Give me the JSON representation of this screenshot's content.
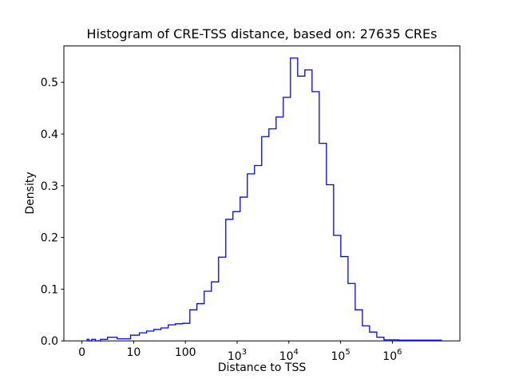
{
  "figure": {
    "title": "Histogram of CRE-TSS distance, based on: 27635 CREs",
    "xlabel": "Distance to TSS",
    "ylabel": "Density",
    "cre_count": 27635,
    "background_color": "#ffffff",
    "line_color": "#0000ff",
    "axis_color": "#000000"
  },
  "chart_data": {
    "type": "bar",
    "subtype": "step-histogram",
    "title": "Histogram of CRE-TSS distance, based on: 27635 CREs",
    "xlabel": "Distance to TSS",
    "ylabel": "Density",
    "x_scale": "symlog",
    "grid": false,
    "legend": "none",
    "line_color": "#0000ff",
    "ylim": [
      0.0,
      0.57
    ],
    "y_ticks": [
      {
        "value": 0.0,
        "label": "0.0"
      },
      {
        "value": 0.1,
        "label": "0.1"
      },
      {
        "value": 0.2,
        "label": "0.2"
      },
      {
        "value": 0.3,
        "label": "0.3"
      },
      {
        "value": 0.4,
        "label": "0.4"
      },
      {
        "value": 0.5,
        "label": "0.5"
      }
    ],
    "x_ticks": [
      {
        "value": 0,
        "label": "0"
      },
      {
        "value": 10,
        "label": "10"
      },
      {
        "value": 100,
        "label": "100"
      },
      {
        "value": 1000,
        "label": "10",
        "sup": "3"
      },
      {
        "value": 10000,
        "label": "10",
        "sup": "4"
      },
      {
        "value": 100000,
        "label": "10",
        "sup": "5"
      },
      {
        "value": 1000000,
        "label": "10",
        "sup": "6"
      }
    ],
    "bin_edges": [
      1,
      1.38,
      1.9,
      2.61,
      3.6,
      4.96,
      6.82,
      9.4,
      12.9,
      17.8,
      24.6,
      33.8,
      46.6,
      64.1,
      88.3,
      122,
      167,
      231,
      318,
      438,
      603,
      830,
      1143,
      1574,
      2168,
      2985,
      4112,
      5662,
      7798,
      10740,
      14791,
      20370,
      28054,
      38637,
      53211,
      73282,
      100925,
      138995,
      191426,
      263634,
      363078,
      500035,
      688652,
      948418,
      1306171,
      1798871,
      2477398,
      3411927,
      4698941,
      6471480,
      8912509
    ],
    "densities": [
      0.003,
      0,
      0.003,
      0,
      0.003,
      0.007,
      0.004,
      0.011,
      0.0155,
      0.019,
      0.022,
      0.025,
      0.031,
      0.033,
      0.034,
      0.06,
      0.072,
      0.096,
      0.114,
      0.162,
      0.235,
      0.25,
      0.278,
      0.323,
      0.339,
      0.395,
      0.41,
      0.433,
      0.471,
      0.547,
      0.512,
      0.524,
      0.482,
      0.382,
      0.302,
      0.204,
      0.163,
      0.111,
      0.06,
      0.029,
      0.017,
      0.007,
      0.002,
      0.002,
      0.0015,
      0.0015,
      0.0015,
      0.0015,
      0.0015,
      0.0015
    ]
  }
}
